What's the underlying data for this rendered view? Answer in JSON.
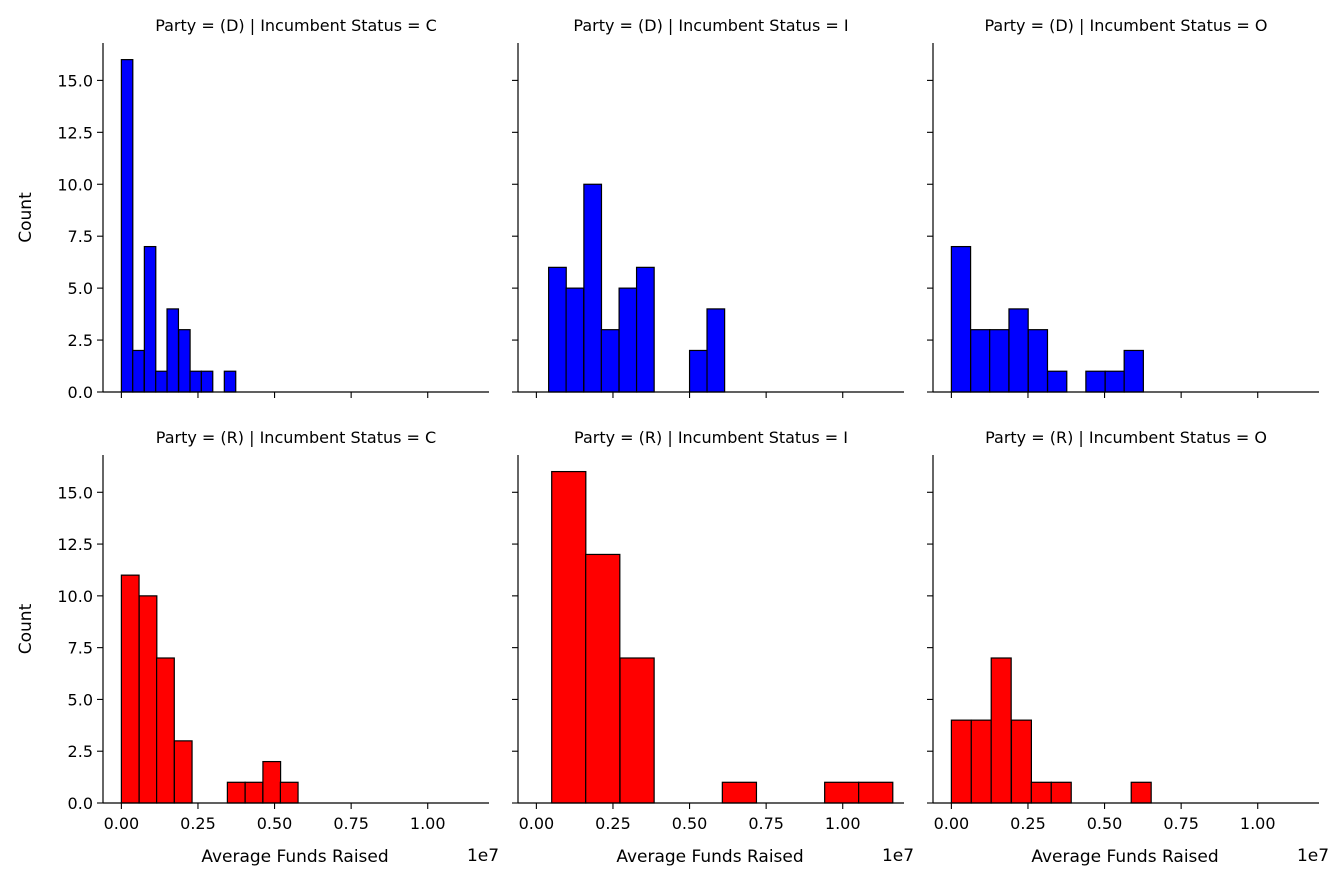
{
  "chart_data": {
    "type": "bar",
    "layout": "facet-grid 2x3, shared axes",
    "xlabel": "Average Funds Raised",
    "ylabel": "Count",
    "x_offset_label": "1e7",
    "xlim": [
      -0.06,
      1.2
    ],
    "ylim": [
      0,
      16.8
    ],
    "x_ticks": [
      0.0,
      0.25,
      0.5,
      0.75,
      1.0
    ],
    "x_tick_labels": [
      "0.00",
      "0.25",
      "0.50",
      "0.75",
      "1.00"
    ],
    "y_ticks": [
      0.0,
      2.5,
      5.0,
      7.5,
      10.0,
      12.5,
      15.0
    ],
    "y_tick_labels": [
      "0.0",
      "2.5",
      "5.0",
      "7.5",
      "10.0",
      "12.5",
      "15.0"
    ],
    "grid": false,
    "edge_color": "#000000",
    "panels": [
      {
        "title": "Party = (D) | Incumbent Status = C",
        "color": "#0000ff",
        "bin_width": 0.0373,
        "bins": [
          {
            "x0": 0.0,
            "count": 16
          },
          {
            "x0": 0.037,
            "count": 2
          },
          {
            "x0": 0.075,
            "count": 7
          },
          {
            "x0": 0.112,
            "count": 1
          },
          {
            "x0": 0.149,
            "count": 4
          },
          {
            "x0": 0.187,
            "count": 3
          },
          {
            "x0": 0.224,
            "count": 1
          },
          {
            "x0": 0.261,
            "count": 1
          },
          {
            "x0": 0.336,
            "count": 1
          }
        ]
      },
      {
        "title": "Party = (D) | Incumbent Status = I",
        "color": "#0000ff",
        "bin_width": 0.0575,
        "bins": [
          {
            "x0": 0.04,
            "count": 6
          },
          {
            "x0": 0.097,
            "count": 5
          },
          {
            "x0": 0.155,
            "count": 10
          },
          {
            "x0": 0.212,
            "count": 3
          },
          {
            "x0": 0.27,
            "count": 5
          },
          {
            "x0": 0.327,
            "count": 6
          },
          {
            "x0": 0.5,
            "count": 2
          },
          {
            "x0": 0.557,
            "count": 4
          }
        ]
      },
      {
        "title": "Party = (D) | Incumbent Status = O",
        "color": "#0000ff",
        "bin_width": 0.0627,
        "bins": [
          {
            "x0": 0.0,
            "count": 7
          },
          {
            "x0": 0.063,
            "count": 3
          },
          {
            "x0": 0.125,
            "count": 3
          },
          {
            "x0": 0.188,
            "count": 4
          },
          {
            "x0": 0.251,
            "count": 3
          },
          {
            "x0": 0.314,
            "count": 1
          },
          {
            "x0": 0.439,
            "count": 1
          },
          {
            "x0": 0.502,
            "count": 1
          },
          {
            "x0": 0.564,
            "count": 2
          }
        ]
      },
      {
        "title": "Party = (R) | Incumbent Status = C",
        "color": "#ff0000",
        "bin_width": 0.0577,
        "bins": [
          {
            "x0": 0.0,
            "count": 11
          },
          {
            "x0": 0.058,
            "count": 10
          },
          {
            "x0": 0.115,
            "count": 7
          },
          {
            "x0": 0.173,
            "count": 3
          },
          {
            "x0": 0.346,
            "count": 1
          },
          {
            "x0": 0.404,
            "count": 1
          },
          {
            "x0": 0.462,
            "count": 2
          },
          {
            "x0": 0.519,
            "count": 1
          }
        ]
      },
      {
        "title": "Party = (R) | Incumbent Status = I",
        "color": "#ff0000",
        "bin_width": 0.1114,
        "bins": [
          {
            "x0": 0.05,
            "count": 16
          },
          {
            "x0": 0.161,
            "count": 12
          },
          {
            "x0": 0.273,
            "count": 7
          },
          {
            "x0": 0.607,
            "count": 1
          },
          {
            "x0": 0.941,
            "count": 1
          },
          {
            "x0": 1.052,
            "count": 1
          }
        ]
      },
      {
        "title": "Party = (R) | Incumbent Status = O",
        "color": "#ff0000",
        "bin_width": 0.0652,
        "bins": [
          {
            "x0": 0.0,
            "count": 4
          },
          {
            "x0": 0.065,
            "count": 4
          },
          {
            "x0": 0.13,
            "count": 7
          },
          {
            "x0": 0.196,
            "count": 4
          },
          {
            "x0": 0.261,
            "count": 1
          },
          {
            "x0": 0.326,
            "count": 1
          },
          {
            "x0": 0.587,
            "count": 1
          }
        ]
      }
    ]
  }
}
